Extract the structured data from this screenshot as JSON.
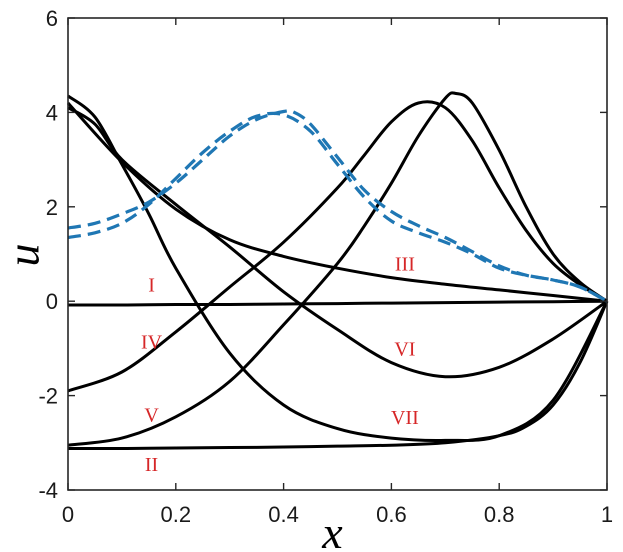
{
  "chart_data": {
    "type": "line",
    "title": "",
    "xlabel": "x",
    "ylabel": "u",
    "xlim": [
      0,
      1
    ],
    "ylim": [
      -4,
      6
    ],
    "xticks": [
      "0",
      "0.2",
      "0.4",
      "0.6",
      "0.8",
      "1"
    ],
    "yticks": [
      "-4",
      "-2",
      "0",
      "2",
      "4",
      "6"
    ],
    "grid": false,
    "colors": {
      "solid": "#000000",
      "dashed": "#1f77b4",
      "labels": "#d62728"
    },
    "series": [
      {
        "style": "solid",
        "x": [
          0,
          0.1,
          0.2,
          0.3,
          0.4,
          0.5,
          0.6,
          0.7,
          0.8,
          0.9,
          1
        ],
        "y": [
          -0.08,
          -0.08,
          -0.07,
          -0.07,
          -0.06,
          -0.05,
          -0.04,
          -0.03,
          -0.02,
          -0.01,
          0
        ]
      },
      {
        "style": "solid",
        "x": [
          0,
          0.1,
          0.2,
          0.3,
          0.4,
          0.5,
          0.6,
          0.7,
          0.8,
          0.85,
          0.9,
          0.95,
          1
        ],
        "y": [
          -3.12,
          -3.12,
          -3.11,
          -3.1,
          -3.09,
          -3.07,
          -3.05,
          -3.0,
          -2.85,
          -2.65,
          -2.2,
          -1.3,
          0
        ]
      },
      {
        "style": "solid",
        "x": [
          0,
          0.1,
          0.2,
          0.3,
          0.4,
          0.5,
          0.6,
          0.7,
          0.8,
          0.9,
          1
        ],
        "y": [
          4.2,
          2.95,
          1.95,
          1.3,
          0.95,
          0.7,
          0.5,
          0.36,
          0.24,
          0.12,
          0
        ]
      },
      {
        "style": "solid",
        "x": [
          0,
          0.1,
          0.2,
          0.3,
          0.4,
          0.5,
          0.55,
          0.6,
          0.65,
          0.7,
          0.75,
          0.8,
          0.85,
          0.9,
          0.95,
          1
        ],
        "y": [
          -1.9,
          -1.5,
          -0.65,
          0.3,
          1.25,
          2.4,
          3.1,
          3.8,
          4.2,
          4.1,
          3.4,
          2.4,
          1.5,
          0.8,
          0.35,
          0
        ]
      },
      {
        "style": "solid",
        "x": [
          0,
          0.1,
          0.2,
          0.3,
          0.4,
          0.5,
          0.55,
          0.6,
          0.65,
          0.7,
          0.72,
          0.75,
          0.8,
          0.85,
          0.9,
          0.95,
          1
        ],
        "y": [
          -3.05,
          -2.9,
          -2.45,
          -1.7,
          -0.5,
          0.8,
          1.6,
          2.5,
          3.5,
          4.3,
          4.4,
          4.2,
          3.2,
          2.0,
          1.0,
          0.4,
          0
        ]
      },
      {
        "style": "solid",
        "x": [
          0,
          0.05,
          0.1,
          0.2,
          0.3,
          0.4,
          0.5,
          0.6,
          0.7,
          0.8,
          0.9,
          1
        ],
        "y": [
          4.1,
          3.75,
          3.0,
          2.05,
          1.15,
          0.2,
          -0.6,
          -1.3,
          -1.6,
          -1.4,
          -0.8,
          0
        ]
      },
      {
        "style": "solid",
        "x": [
          0,
          0.05,
          0.1,
          0.15,
          0.2,
          0.3,
          0.4,
          0.5,
          0.6,
          0.7,
          0.8,
          0.9,
          1
        ],
        "y": [
          4.35,
          3.9,
          2.9,
          1.85,
          0.7,
          -1.1,
          -2.2,
          -2.7,
          -2.9,
          -2.95,
          -2.85,
          -2.1,
          0
        ]
      },
      {
        "style": "dashed",
        "x": [
          0,
          0.05,
          0.1,
          0.15,
          0.2,
          0.25,
          0.3,
          0.35,
          0.4,
          0.42,
          0.45,
          0.5,
          0.55,
          0.6,
          0.65,
          0.7,
          0.75,
          0.8,
          0.85,
          0.9,
          0.95,
          1
        ],
        "y": [
          1.55,
          1.65,
          1.85,
          2.1,
          2.5,
          3.0,
          3.5,
          3.85,
          4.02,
          4.0,
          3.75,
          3.05,
          2.35,
          1.9,
          1.6,
          1.35,
          1.05,
          0.75,
          0.55,
          0.45,
          0.3,
          0
        ]
      },
      {
        "style": "dashed",
        "x": [
          0,
          0.05,
          0.1,
          0.15,
          0.2,
          0.25,
          0.3,
          0.35,
          0.4,
          0.45,
          0.5,
          0.55,
          0.6,
          0.65,
          0.7,
          0.75,
          0.8,
          0.85,
          0.9,
          0.95,
          1
        ],
        "y": [
          1.35,
          1.45,
          1.65,
          2.05,
          2.6,
          3.15,
          3.6,
          3.92,
          3.95,
          3.6,
          2.9,
          2.2,
          1.7,
          1.45,
          1.25,
          1.0,
          0.7,
          0.55,
          0.45,
          0.3,
          0
        ]
      }
    ],
    "curve_labels": [
      {
        "text": "I",
        "x": 0.155,
        "y": 0.3
      },
      {
        "text": "II",
        "x": 0.155,
        "y": -3.5
      },
      {
        "text": "III",
        "x": 0.625,
        "y": 0.75
      },
      {
        "text": "IV",
        "x": 0.155,
        "y": -0.9
      },
      {
        "text": "V",
        "x": 0.155,
        "y": -2.45
      },
      {
        "text": "VI",
        "x": 0.625,
        "y": -1.05
      },
      {
        "text": "VII",
        "x": 0.625,
        "y": -2.5
      }
    ]
  }
}
